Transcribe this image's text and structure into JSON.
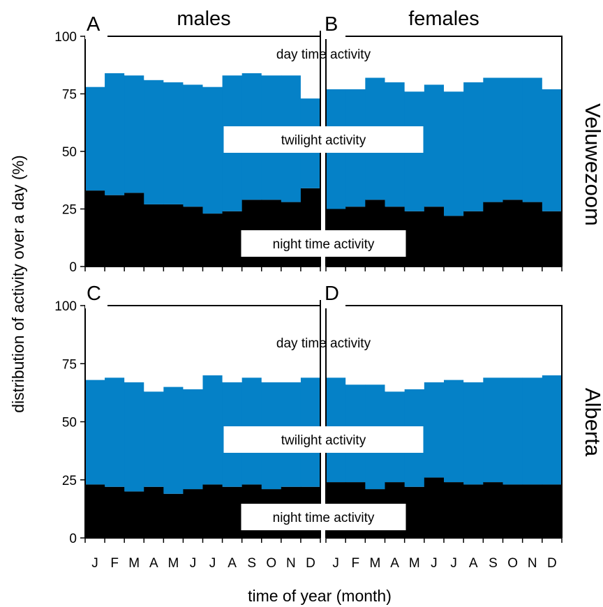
{
  "chart_data": {
    "type": "bar",
    "subtype": "stacked-bar-grid",
    "xlabel": "time of year (month)",
    "ylabel": "distribution of activity over a day (%)",
    "ylim": [
      0,
      100
    ],
    "yticks": [
      0,
      25,
      50,
      75,
      100
    ],
    "columns": [
      "males",
      "females"
    ],
    "rows": [
      "Veluwezoom",
      "Alberta"
    ],
    "categories": [
      "J",
      "F",
      "M",
      "A",
      "M",
      "J",
      "J",
      "A",
      "S",
      "O",
      "N",
      "D"
    ],
    "region_labels": {
      "day": "day time activity",
      "twilight": "twilight activity",
      "night": "night time activity"
    },
    "colors": {
      "day": "#ffffff",
      "twilight": "#0581c7",
      "night": "#000000"
    },
    "panels": [
      {
        "letter": "A",
        "row": "Veluwezoom",
        "column": "males",
        "series": [
          {
            "name": "night time activity",
            "values": [
              33,
              31,
              32,
              27,
              27,
              26,
              23,
              24,
              29,
              29,
              28,
              34
            ]
          },
          {
            "name": "twilight activity",
            "values": [
              45,
              53,
              51,
              54,
              53,
              53,
              55,
              59,
              55,
              54,
              55,
              39
            ]
          },
          {
            "name": "day time activity",
            "values": [
              22,
              16,
              17,
              19,
              20,
              21,
              22,
              17,
              16,
              17,
              17,
              27
            ]
          }
        ]
      },
      {
        "letter": "B",
        "row": "Veluwezoom",
        "column": "females",
        "series": [
          {
            "name": "night time activity",
            "values": [
              25,
              26,
              29,
              26,
              24,
              26,
              22,
              24,
              28,
              29,
              28,
              24
            ]
          },
          {
            "name": "twilight activity",
            "values": [
              52,
              51,
              53,
              54,
              52,
              53,
              54,
              56,
              54,
              53,
              54,
              53
            ]
          },
          {
            "name": "day time activity",
            "values": [
              23,
              23,
              18,
              20,
              24,
              21,
              24,
              20,
              18,
              18,
              18,
              23
            ]
          }
        ]
      },
      {
        "letter": "C",
        "row": "Alberta",
        "column": "males",
        "series": [
          {
            "name": "night time activity",
            "values": [
              23,
              22,
              20,
              22,
              19,
              21,
              23,
              22,
              23,
              21,
              22,
              22
            ]
          },
          {
            "name": "twilight activity",
            "values": [
              45,
              47,
              47,
              41,
              46,
              43,
              47,
              45,
              46,
              46,
              45,
              47
            ]
          },
          {
            "name": "day time activity",
            "values": [
              32,
              31,
              33,
              37,
              35,
              36,
              30,
              33,
              31,
              33,
              33,
              31
            ]
          }
        ]
      },
      {
        "letter": "D",
        "row": "Alberta",
        "column": "females",
        "series": [
          {
            "name": "night time activity",
            "values": [
              24,
              24,
              21,
              24,
              22,
              26,
              24,
              23,
              24,
              23,
              23,
              23
            ]
          },
          {
            "name": "twilight activity",
            "values": [
              45,
              42,
              45,
              39,
              42,
              41,
              44,
              44,
              45,
              46,
              46,
              47
            ]
          },
          {
            "name": "day time activity",
            "values": [
              31,
              34,
              34,
              37,
              36,
              33,
              32,
              33,
              31,
              31,
              31,
              30
            ]
          }
        ]
      }
    ]
  }
}
